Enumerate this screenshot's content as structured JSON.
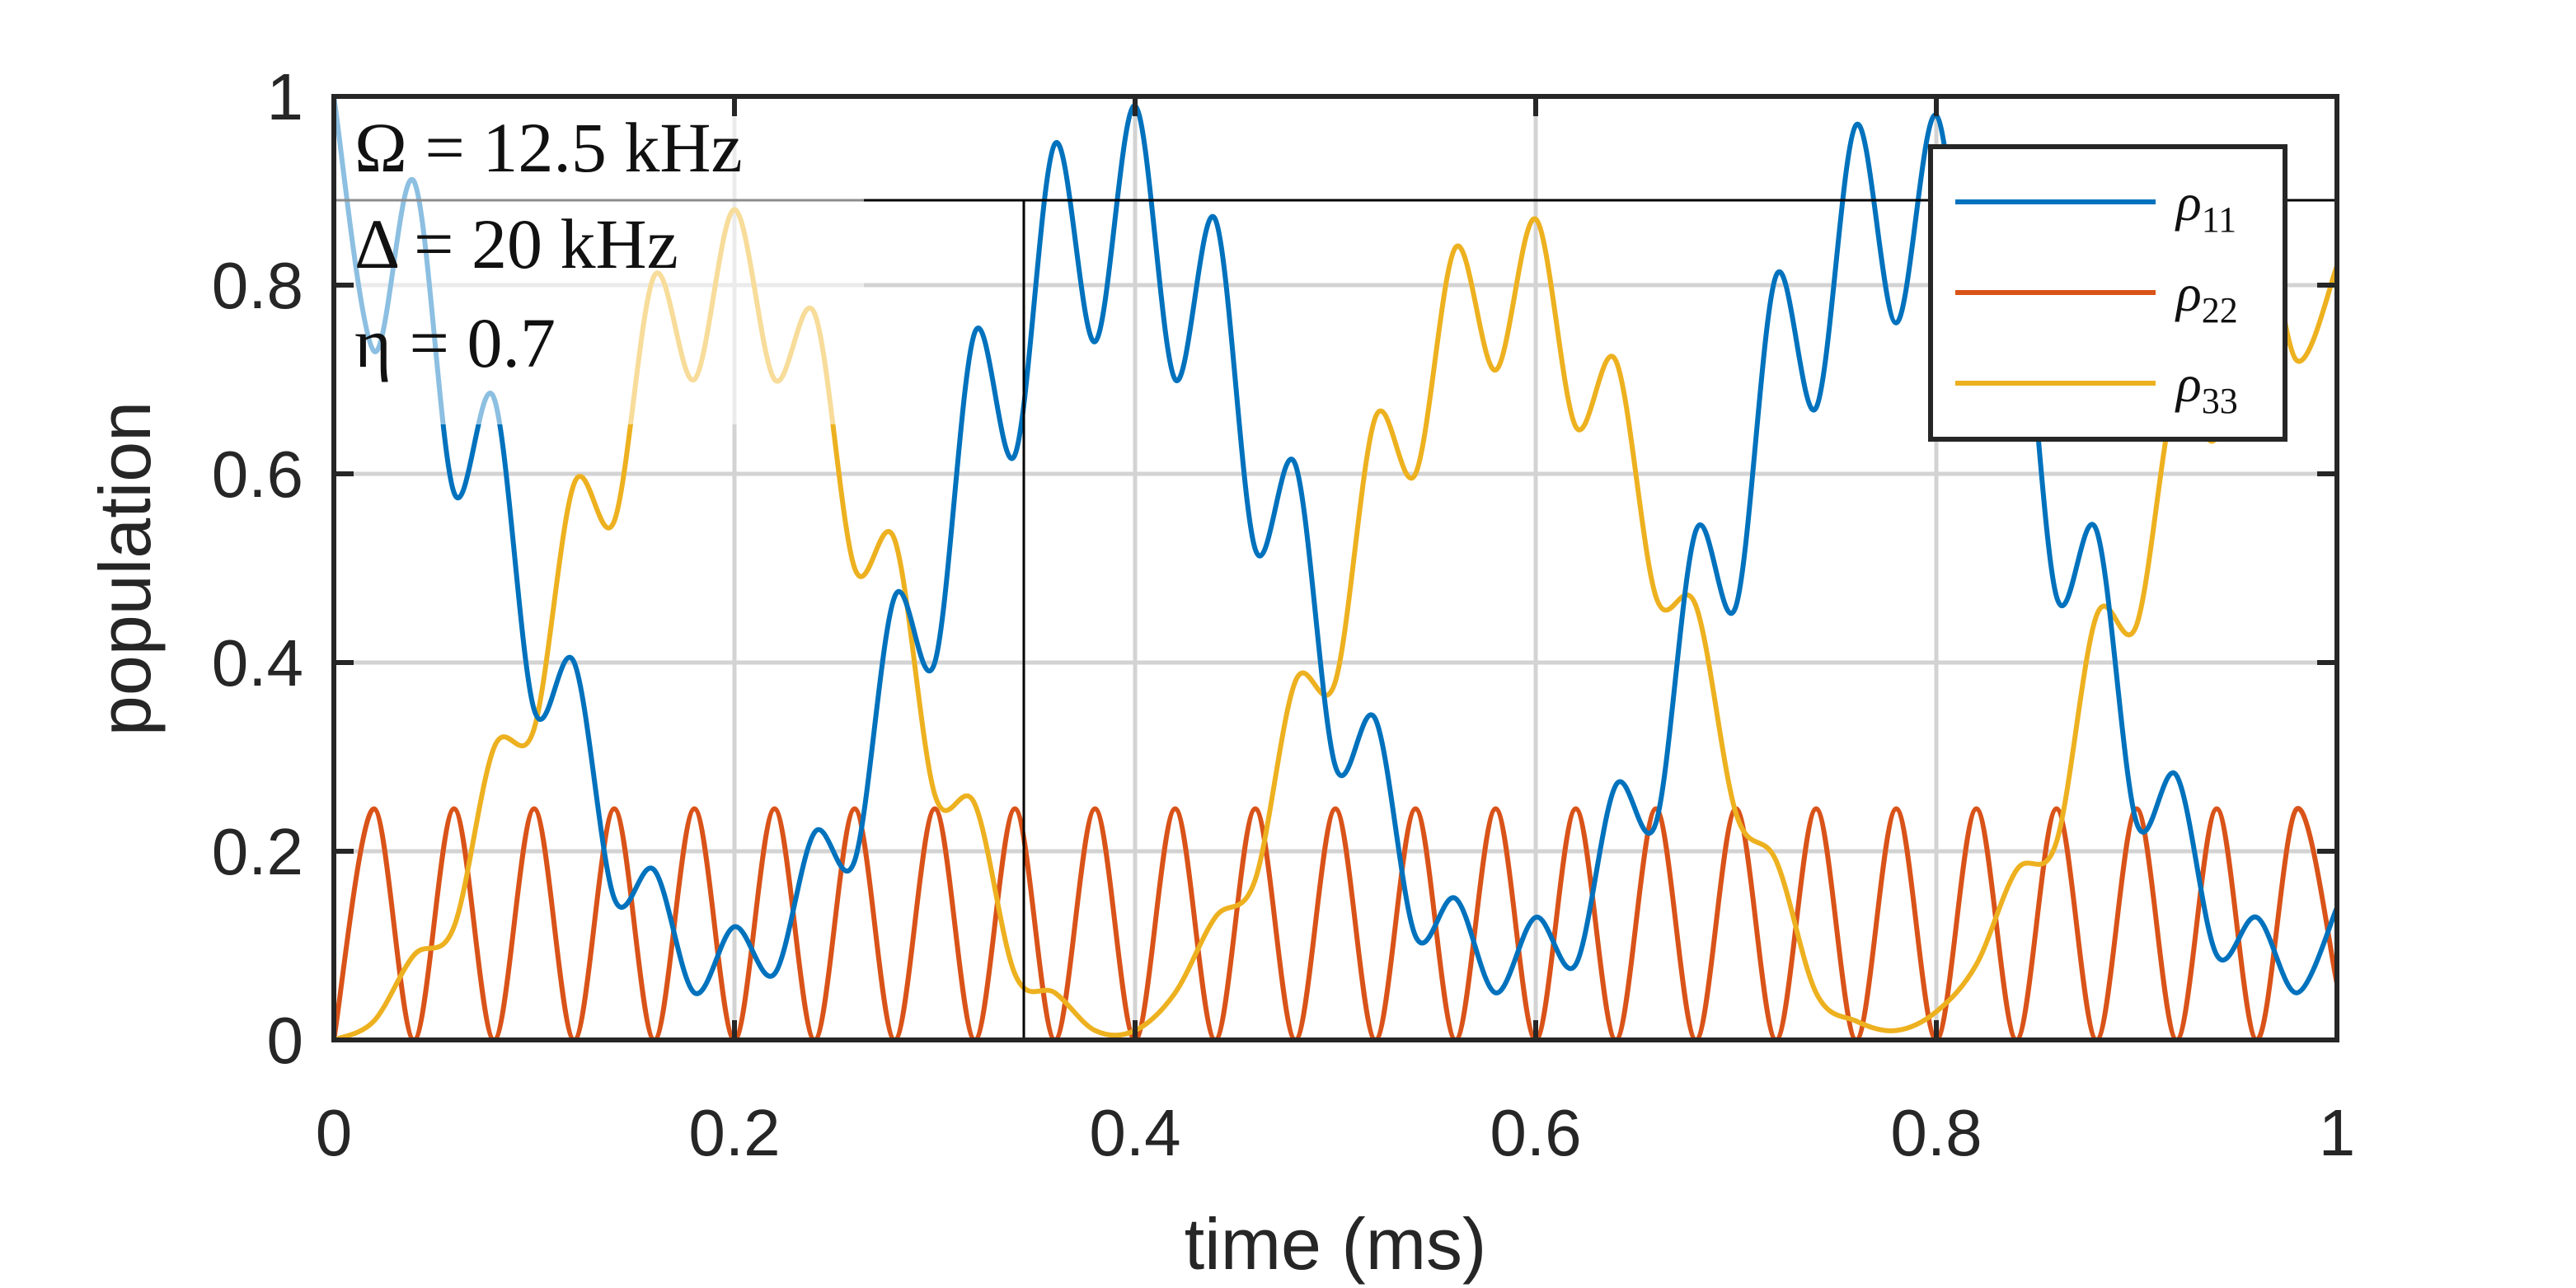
{
  "chart_data": {
    "type": "line",
    "title": "",
    "xlabel": "time (ms)",
    "ylabel": "population",
    "xlim": [
      0,
      1
    ],
    "ylim": [
      0,
      1
    ],
    "xticks": [
      "0",
      "0.2",
      "0.4",
      "0.6",
      "0.8",
      "1"
    ],
    "yticks": [
      "0",
      "0.2",
      "0.4",
      "0.6",
      "0.8",
      "1"
    ],
    "grid": true,
    "legend_position": "top-right",
    "annotations": [
      "Ω = 12.5 kHz",
      "Δ = 20 kHz",
      "η = 0.7"
    ],
    "series": [
      {
        "name": "ρ11",
        "color": "#0072BD",
        "x": [
          0,
          0.02,
          0.04,
          0.06,
          0.08,
          0.1,
          0.12,
          0.14,
          0.16,
          0.18,
          0.2,
          0.22,
          0.24,
          0.26,
          0.28,
          0.3,
          0.32,
          0.34,
          0.36,
          0.38,
          0.4,
          0.42,
          0.44,
          0.46,
          0.48,
          0.5,
          0.52,
          0.54,
          0.56,
          0.58,
          0.6,
          0.62,
          0.64,
          0.66,
          0.68,
          0.7,
          0.72,
          0.74,
          0.76,
          0.78,
          0.8,
          0.82,
          0.84,
          0.86,
          0.88,
          0.9,
          0.92,
          0.94,
          0.96,
          0.98,
          1.0
        ],
        "values": [
          1.0,
          0.73,
          0.91,
          0.58,
          0.68,
          0.35,
          0.4,
          0.15,
          0.18,
          0.05,
          0.12,
          0.07,
          0.22,
          0.19,
          0.47,
          0.4,
          0.75,
          0.62,
          0.95,
          0.74,
          0.99,
          0.7,
          0.87,
          0.52,
          0.61,
          0.29,
          0.34,
          0.11,
          0.15,
          0.05,
          0.13,
          0.08,
          0.27,
          0.23,
          0.54,
          0.46,
          0.81,
          0.67,
          0.97,
          0.76,
          0.98,
          0.69,
          0.84,
          0.47,
          0.54,
          0.23,
          0.28,
          0.09,
          0.13,
          0.05,
          0.14
        ]
      },
      {
        "name": "ρ22",
        "color": "#D95319",
        "x": [
          0,
          0.02,
          0.04,
          0.06,
          0.08,
          0.1,
          0.12,
          0.14,
          0.16,
          0.18,
          0.2,
          0.22,
          0.24,
          0.26,
          0.28,
          0.3,
          0.32,
          0.34,
          0.36,
          0.38,
          0.4,
          0.42,
          0.44,
          0.46,
          0.48,
          0.5,
          0.52,
          0.54,
          0.56,
          0.58,
          0.6,
          0.62,
          0.64,
          0.66,
          0.68,
          0.7,
          0.72,
          0.74,
          0.76,
          0.78,
          0.8,
          0.82,
          0.84,
          0.86,
          0.88,
          0.9,
          0.92,
          0.94,
          0.96,
          0.98,
          1.0
        ],
        "values": [
          0,
          0.245,
          0,
          0.245,
          0,
          0.245,
          0,
          0.245,
          0,
          0.245,
          0,
          0.245,
          0,
          0.245,
          0,
          0.245,
          0,
          0.245,
          0,
          0.245,
          0,
          0.245,
          0,
          0.245,
          0,
          0.245,
          0,
          0.245,
          0,
          0.245,
          0,
          0.245,
          0,
          0.245,
          0,
          0.245,
          0,
          0.245,
          0,
          0.245,
          0,
          0.245,
          0,
          0.245,
          0,
          0.245,
          0,
          0.245,
          0,
          0.245,
          0.06
        ]
      },
      {
        "name": "ρ33",
        "color": "#EDB120",
        "x": [
          0,
          0.02,
          0.04,
          0.06,
          0.08,
          0.1,
          0.12,
          0.14,
          0.16,
          0.18,
          0.2,
          0.22,
          0.24,
          0.26,
          0.28,
          0.3,
          0.32,
          0.34,
          0.36,
          0.38,
          0.4,
          0.42,
          0.44,
          0.46,
          0.48,
          0.5,
          0.52,
          0.54,
          0.56,
          0.58,
          0.6,
          0.62,
          0.64,
          0.66,
          0.68,
          0.7,
          0.72,
          0.74,
          0.76,
          0.78,
          0.8,
          0.82,
          0.84,
          0.86,
          0.88,
          0.9,
          0.92,
          0.94,
          0.96,
          0.98,
          1.0
        ],
        "values": [
          0,
          0.02,
          0.09,
          0.12,
          0.31,
          0.33,
          0.59,
          0.55,
          0.81,
          0.7,
          0.88,
          0.7,
          0.77,
          0.5,
          0.53,
          0.26,
          0.25,
          0.07,
          0.05,
          0.01,
          0.01,
          0.05,
          0.13,
          0.17,
          0.38,
          0.38,
          0.66,
          0.6,
          0.84,
          0.71,
          0.87,
          0.65,
          0.72,
          0.47,
          0.46,
          0.24,
          0.19,
          0.05,
          0.02,
          0.01,
          0.03,
          0.08,
          0.18,
          0.21,
          0.45,
          0.44,
          0.69,
          0.64,
          0.88,
          0.72,
          0.82
        ]
      }
    ]
  }
}
